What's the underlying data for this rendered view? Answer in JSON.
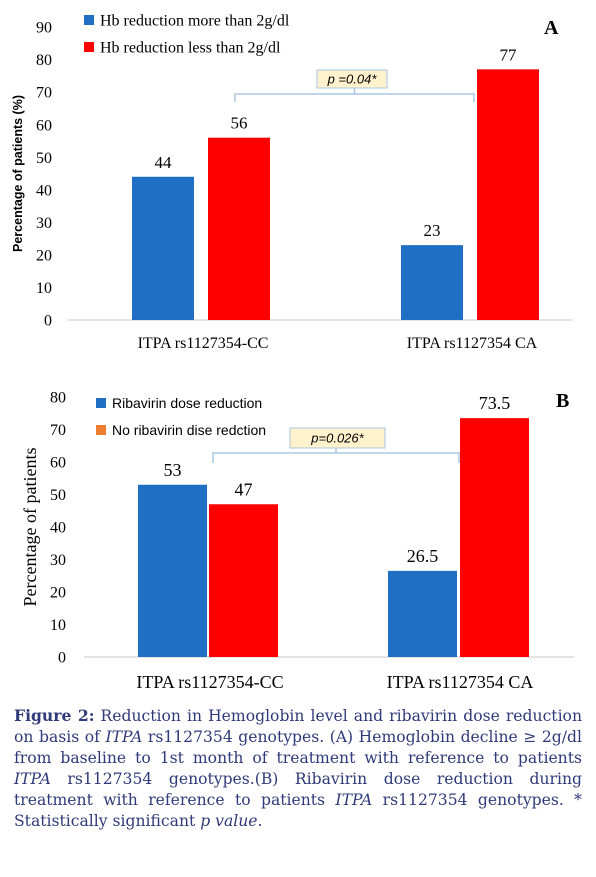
{
  "chart_data": [
    {
      "type": "bar",
      "panel_label": "A",
      "categories": [
        "ITPA rs1127354-CC",
        "ITPA rs1127354 CA"
      ],
      "series": [
        {
          "name": "Hb reduction  more than 2g/dl",
          "values": [
            44,
            23
          ],
          "color": "#1f6fc4"
        },
        {
          "name": "Hb reduction less than 2g/dl",
          "values": [
            56,
            77
          ],
          "color": "#ff0000"
        }
      ],
      "value_labels": [
        [
          "44",
          "23"
        ],
        [
          "56",
          "77"
        ]
      ],
      "ylabel": "Percentage of patients (%)",
      "ylim": [
        0,
        90
      ],
      "yticks": [
        0,
        10,
        20,
        30,
        40,
        50,
        60,
        70,
        80,
        90
      ],
      "grid": false,
      "legend": "top-left",
      "annotation": "p =0.04*"
    },
    {
      "type": "bar",
      "panel_label": "B",
      "categories": [
        "ITPA rs1127354-CC",
        "ITPA rs1127354 CA"
      ],
      "series": [
        {
          "name": "Ribavirin dose reduction",
          "values": [
            53,
            26.5
          ],
          "color": "#1f6fc4"
        },
        {
          "name": "No ribavirin dise redction",
          "values": [
            47,
            73.5
          ],
          "color": "#ff0000",
          "legend_color": "#ed7d31"
        }
      ],
      "value_labels": [
        [
          "53",
          "26.5"
        ],
        [
          "47",
          "73.5"
        ]
      ],
      "ylabel": "Percentage of patients",
      "ylim": [
        0,
        80
      ],
      "yticks": [
        0,
        10,
        20,
        30,
        40,
        50,
        60,
        70,
        80
      ],
      "grid": false,
      "legend": "top-left",
      "annotation": "p=0.026*"
    }
  ],
  "caption": {
    "figure_label": "Figure 2:",
    "t1": " Reduction in Hemoglobin level and ribavirin dose reduction on basis of ",
    "itpa1": "ITPA",
    "t2": " rs1127354 genotypes. (A) Hemoglobin decline ≥ 2g/dl from baseline to 1st month of treatment with reference to patients ",
    "itpa2": "ITPA",
    "t3": " rs1127354 genotypes.(B) Ribavirin dose reduction during treatment with reference to patients ",
    "itpa3": "ITPA",
    "t4": " rs1127354 genotypes. * Statistically significant ",
    "pval": "p value."
  }
}
